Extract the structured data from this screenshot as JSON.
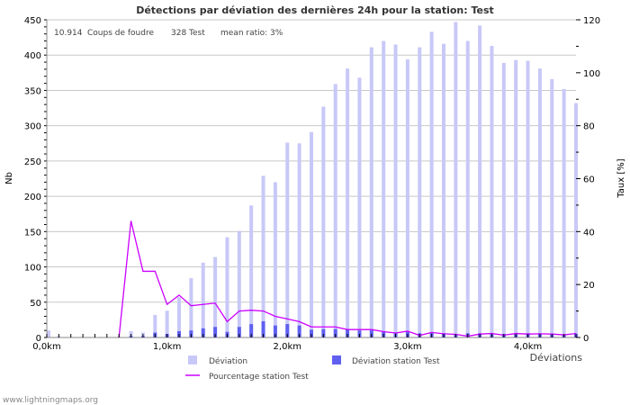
{
  "chart_data": {
    "type": "bar",
    "title": "Détections par déviation des dernières 24h pour la station: Test",
    "info": {
      "strikes": "10.914",
      "strikes_label": "Coups de foudre",
      "station_count": "328 Test",
      "mean_ratio": "mean ratio: 3%"
    },
    "ylabel": "Nb",
    "y2label": "Taux [%]",
    "xlabel": "Déviations",
    "ylim": [
      0,
      450
    ],
    "y2lim": [
      0,
      120
    ],
    "xlim_km": [
      0,
      4.4
    ],
    "bin_km": 0.1,
    "yticks": [
      "0",
      "50",
      "100",
      "150",
      "200",
      "250",
      "300",
      "350",
      "400",
      "450"
    ],
    "y2ticks": [
      "0",
      "20",
      "40",
      "60",
      "80",
      "100",
      "120"
    ],
    "xticks": [
      {
        "km": 0,
        "label": "0,0km"
      },
      {
        "km": 1,
        "label": "1,0km"
      },
      {
        "km": 2,
        "label": "2,0km"
      },
      {
        "km": 3,
        "label": "3,0km"
      },
      {
        "km": 4,
        "label": "4,0km"
      }
    ],
    "series": [
      {
        "name": "Déviation",
        "color": "#c8c8f8",
        "values": [
          10,
          2,
          0,
          0,
          0,
          0,
          1,
          9,
          7,
          32,
          38,
          57,
          84,
          106,
          114,
          142,
          151,
          187,
          229,
          220,
          276,
          275,
          291,
          327,
          359,
          381,
          368,
          411,
          420,
          415,
          394,
          411,
          433,
          416,
          447,
          420,
          442,
          413,
          389,
          393,
          392,
          381,
          366,
          352,
          332
        ]
      },
      {
        "name": "Déviation station Test",
        "color": "#6060f0",
        "values": [
          0,
          0,
          0,
          0,
          0,
          0,
          0,
          2,
          2,
          7,
          5,
          9,
          10,
          13,
          15,
          8,
          15,
          19,
          23,
          17,
          19,
          17,
          11,
          12,
          12,
          11,
          10,
          10,
          9,
          7,
          8,
          6,
          7,
          6,
          4,
          6,
          6,
          5,
          5,
          5,
          6,
          5,
          4,
          4,
          5
        ]
      },
      {
        "name": "Pourcentage station Test",
        "color": "#cc00ff",
        "values": [
          null,
          null,
          null,
          null,
          null,
          null,
          0,
          44,
          25,
          25,
          12.5,
          16,
          12,
          12.5,
          13,
          6,
          10,
          10.3,
          10,
          8,
          7,
          6,
          4,
          4,
          4,
          3,
          3,
          3,
          2.2,
          1.7,
          2.4,
          0.8,
          1.9,
          1.4,
          1.2,
          0.5,
          1.3,
          1.5,
          0.9,
          1.5,
          1.3,
          1.4,
          1.3,
          1.0,
          1.5
        ]
      }
    ],
    "grid": true,
    "legend": "bottom"
  },
  "footer": "www.lightningmaps.org"
}
